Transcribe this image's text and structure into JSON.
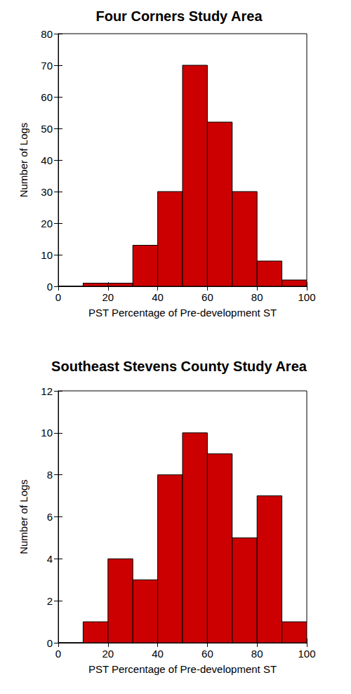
{
  "chart_data": [
    {
      "type": "histogram",
      "title": "Four Corners Study Area",
      "xlabel": "PST Percentage of Pre-development ST",
      "ylabel": "Number of Logs",
      "bins": [
        0,
        10,
        20,
        30,
        40,
        50,
        60,
        70,
        80,
        90,
        100
      ],
      "values": [
        0,
        1,
        1,
        13,
        30,
        70,
        52,
        30,
        8,
        2
      ],
      "color": "#cc0000",
      "xlim": [
        0,
        100
      ],
      "xticks": [
        0,
        20,
        40,
        60,
        80,
        100
      ],
      "ylim": [
        0,
        80
      ],
      "yticks": [
        0,
        10,
        20,
        30,
        40,
        50,
        60,
        70,
        80
      ],
      "grid": false
    },
    {
      "type": "histogram",
      "title": "Southeast Stevens County Study Area",
      "xlabel": "PST Percentage of Pre-development ST",
      "ylabel": "Number of Logs",
      "bins": [
        0,
        10,
        20,
        30,
        40,
        50,
        60,
        70,
        80,
        90,
        100
      ],
      "values": [
        0,
        1,
        4,
        3,
        8,
        10,
        9,
        5,
        7,
        1
      ],
      "color": "#cc0000",
      "xlim": [
        0,
        100
      ],
      "xticks": [
        0,
        20,
        40,
        60,
        80,
        100
      ],
      "ylim": [
        0,
        12
      ],
      "yticks": [
        0,
        2,
        4,
        6,
        8,
        10,
        12
      ],
      "grid": false
    }
  ]
}
